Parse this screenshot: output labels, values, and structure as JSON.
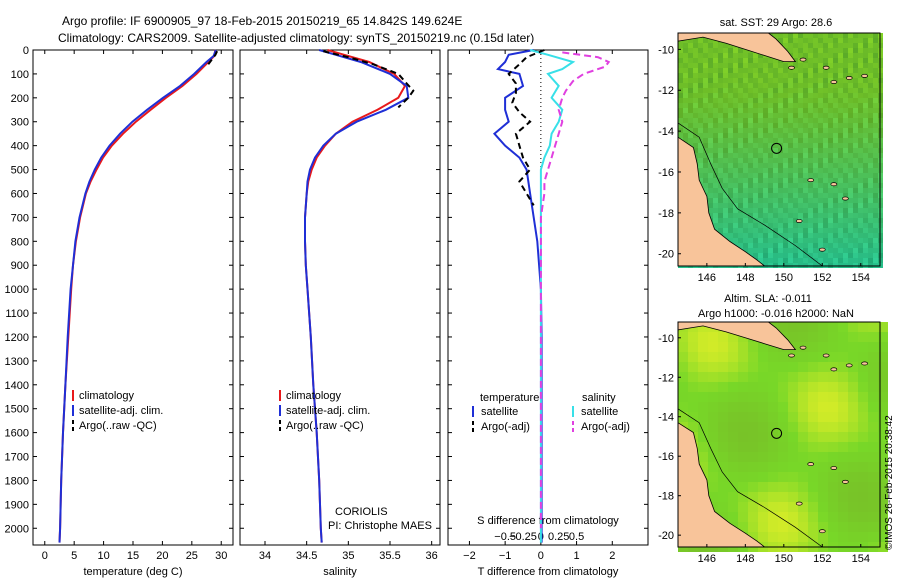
{
  "header": {
    "line1": "Argo profile: IF 6900905_97 18-Feb-2015 20150219_65 14.842S 149.624E",
    "line2": "Climatology: CARS2009. Satellite-adjusted climatology: synTS_20150219.nc (0.15d later)"
  },
  "footer": {
    "coriolis": "CORIOLIS",
    "pi": "PI: Christophe MAES",
    "imos": "©IMOS 26-Feb-2015 20:38:42"
  },
  "colors": {
    "climatology": "#e8191b",
    "satellite": "#1f2fd6",
    "argo": "#000000",
    "sat_salinity": "#38e0e8",
    "argo_salinity": "#e040e0",
    "land": "#f8c49a"
  },
  "chart_data": [
    {
      "type": "line",
      "id": "temperature",
      "xlabel": "temperature (deg C)",
      "xlim": [
        -2,
        32
      ],
      "xticks": [
        0,
        5,
        10,
        15,
        20,
        25,
        30
      ],
      "xtick_labels": [
        "0",
        "5",
        "10",
        "15",
        "20",
        "25",
        "30"
      ],
      "ylim": [
        2070,
        0
      ],
      "yticks": [
        0,
        100,
        200,
        300,
        400,
        500,
        600,
        700,
        800,
        900,
        1000,
        1100,
        1200,
        1300,
        1400,
        1500,
        1600,
        1700,
        1800,
        1900,
        2000
      ],
      "ytick_labels": [
        "0",
        "100",
        "200",
        "300",
        "400",
        "500",
        "600",
        "700",
        "800",
        "900",
        "1000",
        "1100",
        "1200",
        "1300",
        "1400",
        "1500",
        "1600",
        "1700",
        "1800",
        "1900",
        "2000"
      ],
      "legend": [
        "climatology",
        "satellite-adj. clim.",
        "Argo(..raw -QC)"
      ],
      "series": [
        {
          "name": "climatology",
          "depth": [
            0,
            25,
            50,
            100,
            150,
            200,
            250,
            300,
            350,
            400,
            450,
            500,
            550,
            600,
            700,
            800,
            900,
            1000,
            1200,
            1400,
            1600,
            1800,
            2000,
            2060
          ],
          "values": [
            29.0,
            28.8,
            27.8,
            25.8,
            23.4,
            20.6,
            18.0,
            15.5,
            13.3,
            11.4,
            9.9,
            8.8,
            7.8,
            7.0,
            6.0,
            5.3,
            4.8,
            4.5,
            4.0,
            3.5,
            3.1,
            2.8,
            2.6,
            2.5
          ]
        },
        {
          "name": "satellite-adj. clim.",
          "depth": [
            0,
            25,
            50,
            100,
            150,
            200,
            250,
            300,
            350,
            400,
            450,
            500,
            550,
            600,
            700,
            800,
            900,
            1000,
            1200,
            1400,
            1600,
            1800,
            2000,
            2060
          ],
          "values": [
            29.1,
            28.7,
            27.5,
            25.4,
            23.0,
            20.1,
            17.4,
            14.9,
            12.8,
            11.0,
            9.6,
            8.5,
            7.6,
            6.9,
            5.9,
            5.2,
            4.8,
            4.4,
            3.9,
            3.5,
            3.1,
            2.8,
            2.6,
            2.5
          ]
        },
        {
          "name": "Argo(..raw -QC)",
          "depth": [
            5,
            20,
            40,
            60
          ],
          "values": [
            29.3,
            29.0,
            28.4,
            27.8
          ]
        }
      ]
    },
    {
      "type": "line",
      "id": "salinity",
      "xlabel": "salinity",
      "xlim": [
        33.7,
        36.1
      ],
      "xticks": [
        34,
        34.5,
        35,
        35.5,
        36
      ],
      "xtick_labels": [
        "34",
        "34.5",
        "35",
        "35.5",
        "36"
      ],
      "ylim": [
        2070,
        0
      ],
      "legend": [
        "climatology",
        "satellite-adj. clim.",
        "Argo(..raw -QC)"
      ],
      "series": [
        {
          "name": "climatology",
          "depth": [
            0,
            20,
            50,
            100,
            150,
            200,
            250,
            300,
            350,
            400,
            450,
            500,
            550,
            600,
            700,
            800,
            900,
            1000,
            1200,
            1400,
            1600,
            1800,
            2000,
            2060
          ],
          "values": [
            34.75,
            34.95,
            35.25,
            35.55,
            35.68,
            35.6,
            35.35,
            35.05,
            34.85,
            34.72,
            34.62,
            34.56,
            34.52,
            34.5,
            34.48,
            34.48,
            34.49,
            34.51,
            34.55,
            34.58,
            34.62,
            34.65,
            34.67,
            34.68
          ]
        },
        {
          "name": "satellite-adj. clim.",
          "depth": [
            0,
            20,
            50,
            100,
            150,
            200,
            250,
            300,
            350,
            400,
            450,
            500,
            550,
            600,
            700,
            800,
            900,
            1000,
            1200,
            1400,
            1600,
            1800,
            2000,
            2060
          ],
          "values": [
            34.65,
            34.85,
            35.15,
            35.5,
            35.7,
            35.72,
            35.45,
            35.1,
            34.85,
            34.7,
            34.6,
            34.54,
            34.51,
            34.5,
            34.48,
            34.48,
            34.49,
            34.51,
            34.55,
            34.58,
            34.62,
            34.65,
            34.67,
            34.68
          ]
        },
        {
          "name": "Argo(..raw -QC)",
          "depth": [
            5,
            30,
            60,
            100,
            140,
            170,
            200,
            240
          ],
          "values": [
            34.7,
            35.0,
            35.3,
            35.6,
            35.7,
            35.78,
            35.72,
            35.6
          ]
        }
      ]
    },
    {
      "type": "line",
      "id": "difference",
      "xlabel": "T difference from climatology",
      "xlabel2": "S difference from climatology",
      "xlim": [
        -2.6,
        3.0
      ],
      "xticks": [
        -2,
        -1,
        0,
        1,
        2
      ],
      "xtick_labels": [
        "−2",
        "−1",
        "0",
        "1",
        "2"
      ],
      "xticks_top": [
        -1,
        -0.5,
        0,
        0.5,
        1
      ],
      "xtick_labels_top": [
        "−0.5",
        "−0.25",
        "0",
        "0.25",
        "0.5"
      ],
      "ylim": [
        2070,
        0
      ],
      "legend_headers": [
        "temperature",
        "salinity"
      ],
      "legend": [
        "satellite",
        "Argo(-adj)",
        "satellite",
        "Argo(-adj)"
      ],
      "series": [
        {
          "name": "satellite",
          "depth": [
            0,
            20,
            50,
            80,
            100,
            150,
            200,
            250,
            300,
            350,
            400,
            450,
            500,
            600,
            700,
            800,
            900,
            1000,
            1200,
            1500,
            1800,
            2000,
            2060
          ],
          "values": [
            -0.2,
            -0.9,
            -1.0,
            -1.2,
            -0.6,
            -0.5,
            -1.0,
            -1.0,
            -0.9,
            -1.3,
            -1.0,
            -0.6,
            -0.4,
            -0.3,
            -0.2,
            -0.1,
            -0.05,
            0.0,
            0.02,
            0.02,
            0.02,
            0.02,
            0.02
          ]
        },
        {
          "name": "satellite (salinity)",
          "depth": [
            0,
            20,
            50,
            80,
            100,
            150,
            200,
            250,
            300,
            350,
            400,
            450,
            500,
            600,
            700,
            800,
            1000,
            1500,
            2000,
            2060
          ],
          "values": [
            -0.3,
            0.2,
            0.9,
            0.6,
            0.2,
            0.5,
            0.3,
            0.6,
            0.5,
            0.3,
            0.25,
            0.1,
            0.0,
            0.0,
            0.0,
            0.0,
            0.0,
            0.0,
            0.0,
            0.0
          ]
        },
        {
          "name": "Argo(-adj)",
          "depth": [
            0,
            30,
            60,
            100,
            140,
            180,
            220,
            260,
            300,
            350,
            400,
            450,
            500,
            550,
            600,
            650
          ],
          "values": [
            0.1,
            -0.4,
            -0.6,
            -0.9,
            -0.7,
            -0.7,
            -0.8,
            -0.6,
            -0.3,
            -0.7,
            -0.6,
            -0.5,
            -0.3,
            -0.6,
            -0.4,
            -0.2
          ]
        },
        {
          "name": "Argo(-adj) (salinity)",
          "depth": [
            10,
            30,
            50,
            70,
            100,
            130,
            170,
            200,
            250,
            300,
            350,
            400,
            450,
            500,
            550,
            600,
            650,
            700,
            750,
            2000
          ],
          "values": [
            0.6,
            1.6,
            1.9,
            1.8,
            1.2,
            0.9,
            0.7,
            0.6,
            0.5,
            0.6,
            0.5,
            0.4,
            0.3,
            0.2,
            0.1,
            0.1,
            0.05,
            0.0,
            0.0,
            0.0
          ]
        }
      ]
    },
    {
      "type": "heatmap",
      "id": "sst_map",
      "title": "sat. SST: 29 Argo: 28.6",
      "xlim": [
        144.5,
        155
      ],
      "ylim": [
        -20.6,
        -9.2
      ],
      "xticks": [
        146,
        148,
        150,
        152,
        154
      ],
      "xtick_labels": [
        "146",
        "148",
        "150",
        "152",
        "154"
      ],
      "yticks": [
        -10,
        -12,
        -14,
        -16,
        -18,
        -20
      ],
      "ytick_labels": [
        "-10",
        "-12",
        "-14",
        "-16",
        "-18",
        "-20"
      ],
      "marker": {
        "lon": 149.624,
        "lat": -14.842
      }
    },
    {
      "type": "heatmap",
      "id": "sla_map",
      "title": "Altim. SLA: -0.011",
      "subtitle": "Argo h1000: -0.016 h2000: NaN",
      "xlim": [
        144.5,
        155
      ],
      "ylim": [
        -20.6,
        -9.2
      ],
      "xticks": [
        146,
        148,
        150,
        152,
        154
      ],
      "xtick_labels": [
        "146",
        "148",
        "150",
        "152",
        "154"
      ],
      "yticks": [
        -10,
        -12,
        -14,
        -16,
        -18,
        -20
      ],
      "ytick_labels": [
        "-10",
        "-12",
        "-14",
        "-16",
        "-18",
        "-20"
      ],
      "marker": {
        "lon": 149.624,
        "lat": -14.842
      }
    }
  ]
}
